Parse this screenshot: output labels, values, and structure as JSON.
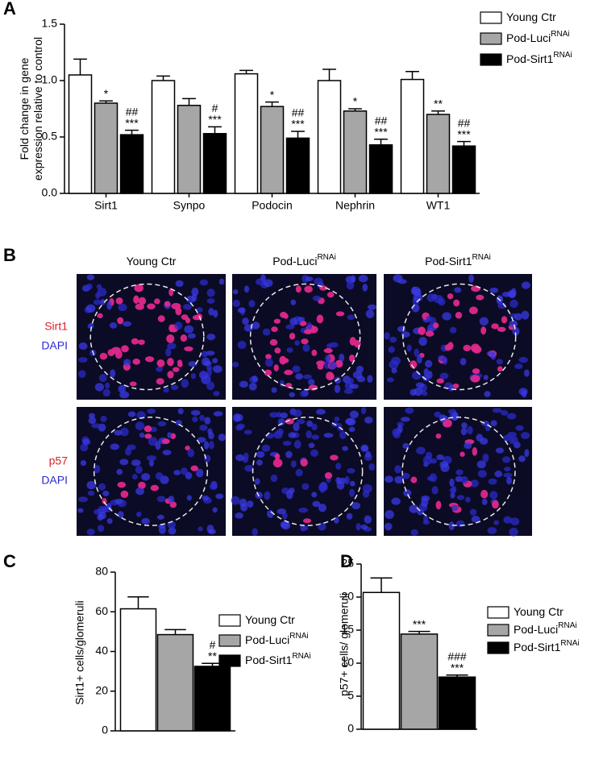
{
  "chart_data": [
    {
      "type": "bar",
      "panel_label": "A",
      "ylabel": [
        "Fold change in gene",
        "expression relative to control"
      ],
      "categories": [
        "Sirt1",
        "Synpo",
        "Podocin",
        "Nephrin",
        "WT1"
      ],
      "ylim": [
        0,
        1.5
      ],
      "yticks": [
        {
          "value": 0,
          "label": "0.0"
        },
        {
          "value": 0.5,
          "label": "0.5"
        },
        {
          "value": 1,
          "label": "1.0"
        },
        {
          "value": 1.5,
          "label": "1.5"
        }
      ],
      "series": [
        {
          "name": "Young Ctr",
          "color": "#ffffff",
          "values": [
            1.05,
            1.0,
            1.06,
            1.0,
            1.01
          ],
          "errors": [
            0.14,
            0.04,
            0.03,
            0.1,
            0.07
          ]
        },
        {
          "name": "Pod-Luci",
          "name_superscript": "RNAi",
          "color": "#a6a6a6",
          "values": [
            0.8,
            0.78,
            0.77,
            0.73,
            0.7
          ],
          "errors": [
            0.02,
            0.06,
            0.04,
            0.02,
            0.03
          ],
          "significance": [
            [
              "*"
            ],
            null,
            [
              "*"
            ],
            [
              "*"
            ],
            [
              "**"
            ]
          ]
        },
        {
          "name": "Pod-Sirt1",
          "name_superscript": "RNAi",
          "color": "#000000",
          "values": [
            0.52,
            0.53,
            0.49,
            0.43,
            0.42
          ],
          "errors": [
            0.04,
            0.06,
            0.06,
            0.05,
            0.04
          ],
          "significance": [
            [
              "##",
              "***"
            ],
            [
              "#",
              "***"
            ],
            [
              "##",
              "***"
            ],
            [
              "##",
              "***"
            ],
            [
              "##",
              "***"
            ]
          ]
        }
      ]
    },
    {
      "type": "bar",
      "panel_label": "C",
      "ylabel": [
        "Sirt1+ cells/glomeruli"
      ],
      "ylim": [
        0,
        80
      ],
      "yticks": [
        0,
        20,
        40,
        60,
        80
      ],
      "series": [
        {
          "name": "Young Ctr",
          "color": "#ffffff",
          "values": [
            61.5
          ],
          "errors": [
            6
          ]
        },
        {
          "name": "Pod-Luci",
          "name_superscript": "RNAi",
          "color": "#a6a6a6",
          "values": [
            48.5
          ],
          "errors": [
            2.5
          ]
        },
        {
          "name": "Pod-Sirt1",
          "name_superscript": "RNAi",
          "color": "#000000",
          "values": [
            32.5
          ],
          "errors": [
            1.5
          ],
          "significance": [
            [
              "#",
              "**"
            ]
          ]
        }
      ]
    },
    {
      "type": "bar",
      "panel_label": "D",
      "ylabel": [
        "p57+ cells/ glomeruli"
      ],
      "ylim": [
        0,
        25
      ],
      "yticks": [
        0,
        5,
        10,
        15,
        20,
        25
      ],
      "series": [
        {
          "name": "Young Ctr",
          "color": "#ffffff",
          "values": [
            20.7
          ],
          "errors": [
            2.2
          ]
        },
        {
          "name": "Pod-Luci",
          "name_superscript": "RNAi",
          "color": "#a6a6a6",
          "values": [
            14.4
          ],
          "errors": [
            0.4
          ],
          "significance": [
            [
              "***"
            ]
          ]
        },
        {
          "name": "Pod-Sirt1",
          "name_superscript": "RNAi",
          "color": "#000000",
          "values": [
            7.9
          ],
          "errors": [
            0.3
          ],
          "significance": [
            [
              "###",
              "***"
            ]
          ]
        }
      ]
    }
  ],
  "image_panel": {
    "panel_label": "B",
    "columns": [
      {
        "text": "Young Ctr"
      },
      {
        "text": "Pod-Luci",
        "superscript": "RNAi"
      },
      {
        "text": "Pod-Sirt1",
        "superscript": "RNAi"
      }
    ],
    "rows": [
      [
        "Sirt1",
        "DAPI"
      ],
      [
        "p57",
        "DAPI"
      ]
    ]
  }
}
